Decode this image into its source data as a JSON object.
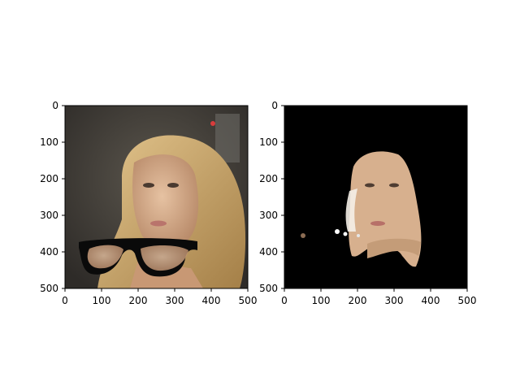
{
  "chart_data": [
    {
      "type": "image",
      "content": "photo of a blonde woman's face with sunglasses overlaid near the bottom",
      "xlim": [
        0,
        500
      ],
      "ylim": [
        500,
        0
      ],
      "xticks": [
        0,
        100,
        200,
        300,
        400,
        500
      ],
      "yticks": [
        0,
        100,
        200,
        300,
        400,
        500
      ],
      "xtick_labels": [
        "0",
        "100",
        "200",
        "300",
        "400",
        "500"
      ],
      "ytick_labels": [
        "0",
        "100",
        "200",
        "300",
        "400",
        "500"
      ]
    },
    {
      "type": "image",
      "content": "segmentation mask showing only skin/face pixels on black background",
      "xlim": [
        0,
        500
      ],
      "ylim": [
        500,
        0
      ],
      "xticks": [
        0,
        100,
        200,
        300,
        400,
        500
      ],
      "yticks": [
        0,
        100,
        200,
        300,
        400,
        500
      ],
      "xtick_labels": [
        "0",
        "100",
        "200",
        "300",
        "400",
        "500"
      ],
      "ytick_labels": [
        "0",
        "100",
        "200",
        "300",
        "400",
        "500"
      ]
    }
  ],
  "colors": {
    "axis": "#000000",
    "mask_background": "#000000",
    "skin": "#d9b08c",
    "hair": "#c9a36a",
    "background_dark": "#3a3733"
  },
  "icons": [
    "sunglasses-overlay"
  ]
}
